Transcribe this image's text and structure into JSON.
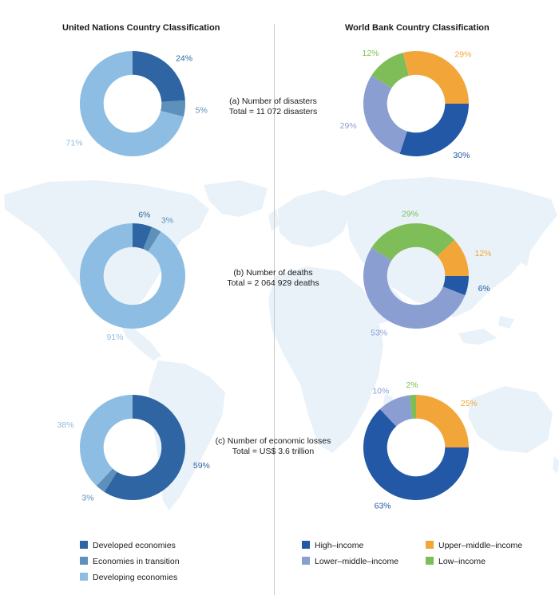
{
  "titles": {
    "left": "United Nations Country Classification",
    "right": "World Bank Country Classification"
  },
  "colors": {
    "developed": "#2e65a2",
    "transition": "#5d90ba",
    "developing": "#8dbde2",
    "high_income": "#2358a6",
    "upper_middle_income": "#f2a63a",
    "lower_middle_income": "#8b9ed2",
    "low_income": "#7fbd58",
    "map": "#e9f2f9"
  },
  "captions": [
    {
      "line1": "(a) Number of disasters",
      "line2": "Total = 11 072 disasters"
    },
    {
      "line1": "(b) Number of deaths",
      "line2": "Total = 2 064 929 deaths"
    },
    {
      "line1": "(c) Number of economic losses",
      "line2": "Total = US$ 3.6 trillion"
    }
  ],
  "chart_data": [
    {
      "type": "pie",
      "classification": "United Nations",
      "panel": "a",
      "categories": [
        "Developed economies",
        "Economies in transition",
        "Developing economies"
      ],
      "values": [
        24,
        5,
        71
      ],
      "labels": [
        "24%",
        "5%",
        "71%"
      ]
    },
    {
      "type": "pie",
      "classification": "World Bank",
      "panel": "a",
      "categories": [
        "High–income",
        "Lower–middle–income",
        "Low–income",
        "Upper–middle–income"
      ],
      "values": [
        30,
        29,
        12,
        29
      ],
      "labels": [
        "30%",
        "29%",
        "12%",
        "29%"
      ]
    },
    {
      "type": "pie",
      "classification": "United Nations",
      "panel": "b",
      "categories": [
        "Developed economies",
        "Economies in transition",
        "Developing economies"
      ],
      "values": [
        6,
        3,
        91
      ],
      "labels": [
        "6%",
        "3%",
        "91%"
      ]
    },
    {
      "type": "pie",
      "classification": "World Bank",
      "panel": "b",
      "categories": [
        "High–income",
        "Lower–middle–income",
        "Low–income",
        "Upper–middle–income"
      ],
      "values": [
        6,
        53,
        29,
        12
      ],
      "labels": [
        "6%",
        "53%",
        "29%",
        "12%"
      ]
    },
    {
      "type": "pie",
      "classification": "United Nations",
      "panel": "c",
      "categories": [
        "Developed economies",
        "Economies in transition",
        "Developing economies"
      ],
      "values": [
        59,
        3,
        38
      ],
      "labels": [
        "59%",
        "3%",
        "38%"
      ]
    },
    {
      "type": "pie",
      "classification": "World Bank",
      "panel": "c",
      "categories": [
        "High–income",
        "Lower–middle–income",
        "Low–income",
        "Upper–middle–income"
      ],
      "values": [
        63,
        10,
        2,
        25
      ],
      "labels": [
        "63%",
        "10%",
        "2%",
        "25%"
      ]
    }
  ],
  "legend_left": [
    {
      "label": "Developed economies",
      "color": "#2e65a2"
    },
    {
      "label": "Economies in transition",
      "color": "#5d90ba"
    },
    {
      "label": "Developing economies",
      "color": "#8dbde2"
    }
  ],
  "legend_right": [
    {
      "label": "High–income",
      "color": "#2358a6"
    },
    {
      "label": "Upper–middle–income",
      "color": "#f2a63a"
    },
    {
      "label": "Lower–middle–income",
      "color": "#8b9ed2"
    },
    {
      "label": "Low–income",
      "color": "#7fbd58"
    }
  ]
}
